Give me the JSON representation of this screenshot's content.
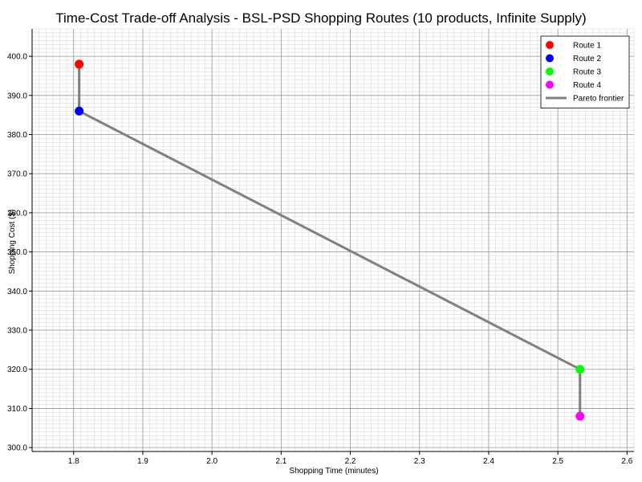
{
  "chart_data": {
    "type": "scatter",
    "title": "Time-Cost Trade-off Analysis - BSL-PSD Shopping Routes (10 products, Infinite Supply)",
    "xlabel": "Shopping Time (minutes)",
    "ylabel": "Shopping Cost ($)",
    "xlim": [
      1.74,
      2.61
    ],
    "ylim": [
      299,
      407
    ],
    "x_ticks": [
      "1.8",
      "1.9",
      "2.0",
      "2.1",
      "2.2",
      "2.3",
      "2.4",
      "2.5",
      "2.6"
    ],
    "x_tick_values": [
      1.8,
      1.9,
      2.0,
      2.1,
      2.2,
      2.3,
      2.4,
      2.5,
      2.6
    ],
    "y_ticks": [
      "300.0",
      "310.0",
      "320.0",
      "330.0",
      "340.0",
      "350.0",
      "360.0",
      "370.0",
      "380.0",
      "390.0",
      "400.0"
    ],
    "y_tick_values": [
      300,
      310,
      320,
      330,
      340,
      350,
      360,
      370,
      380,
      390,
      400
    ],
    "grid": true,
    "minor_grid": true,
    "legend_position": "top-right",
    "series": [
      {
        "name": "Route 1",
        "color": "#ff0000",
        "x": [
          1.808
        ],
        "y": [
          398
        ]
      },
      {
        "name": "Route 2",
        "color": "#0000ff",
        "x": [
          1.808
        ],
        "y": [
          386
        ]
      },
      {
        "name": "Route 3",
        "color": "#00ff00",
        "x": [
          2.532
        ],
        "y": [
          320
        ]
      },
      {
        "name": "Route 4",
        "color": "#ff00ff",
        "x": [
          2.532
        ],
        "y": [
          308
        ]
      }
    ],
    "frontier": {
      "name": "Pareto frontier",
      "color": "#808080",
      "x": [
        1.808,
        1.808,
        2.532,
        2.532
      ],
      "y": [
        398,
        386,
        320,
        308
      ]
    }
  }
}
